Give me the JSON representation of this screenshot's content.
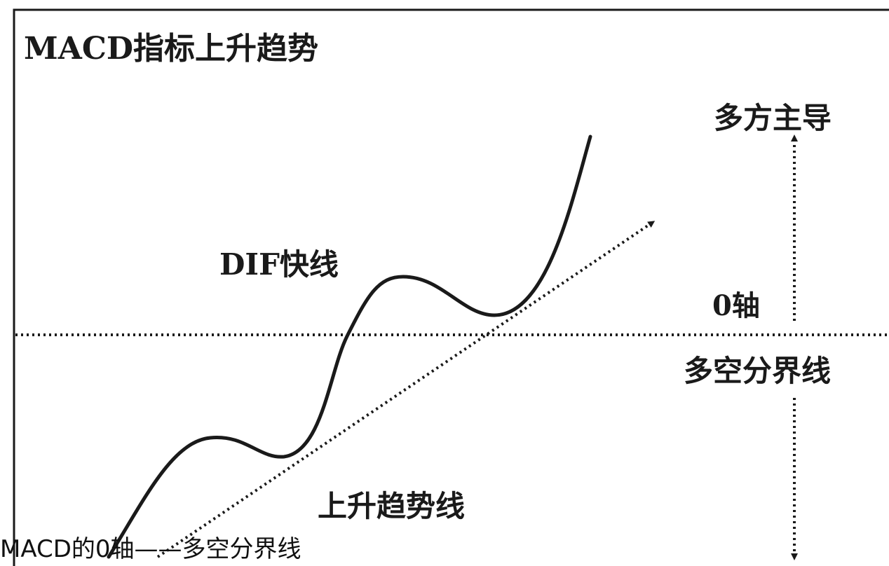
{
  "title": "MACD指标上升趋势",
  "labels": {
    "dif_line": "DIF快线",
    "zero_axis": "0轴",
    "bull_bear_divider": "多空分界线",
    "bulls_dominant": "多方主导",
    "uptrend_line": "上升趋势线"
  },
  "caption": "MACD的0轴——多空分界线",
  "colors": {
    "ink": "#1a1a1a",
    "background": "#ffffff"
  }
}
